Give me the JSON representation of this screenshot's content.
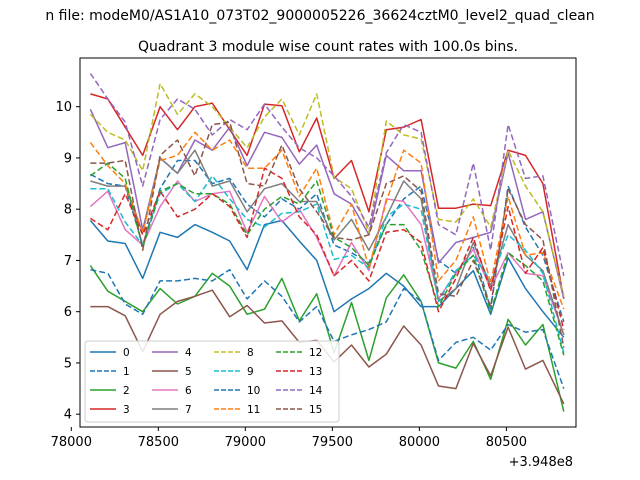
{
  "figure": {
    "suptitle": "n file: modeM0/AS1A10_073T02_9000005226_36624cztM0_level2_quad_clean",
    "title": "Quadrant 3 module wise count rates with 100.0s bins.",
    "offset_label": "+3.948e8"
  },
  "chart_data": {
    "type": "line",
    "title": "Quadrant 3 module wise count rates with 100.0s bins.",
    "xlabel": "",
    "ylabel": "",
    "x_offset": 394800000,
    "xlim": [
      78050,
      80900
    ],
    "ylim": [
      3.75,
      10.95
    ],
    "x_ticks": [
      78000,
      78500,
      79000,
      79500,
      80000,
      80500
    ],
    "x_tick_labels": [
      "78000",
      "78500",
      "79000",
      "79500",
      "80000",
      "80500"
    ],
    "y_ticks": [
      4,
      5,
      6,
      7,
      8,
      9,
      10
    ],
    "y_tick_labels": [
      "4",
      "5",
      "6",
      "7",
      "8",
      "9",
      "10"
    ],
    "grid": false,
    "legend_position": "lower left",
    "legend_columns": 4,
    "x": [
      78110,
      78210,
      78310,
      78410,
      78510,
      78610,
      78710,
      78810,
      78910,
      79010,
      79110,
      79210,
      79310,
      79410,
      79510,
      79610,
      79710,
      79810,
      79910,
      80010,
      80110,
      80210,
      80310,
      80410,
      80510,
      80610,
      80710,
      80830
    ],
    "series": [
      {
        "name": "0",
        "color": "#1f77b4",
        "dash": "solid",
        "values": [
          7.78,
          7.38,
          7.33,
          6.65,
          7.55,
          7.45,
          7.7,
          7.55,
          7.38,
          6.82,
          7.7,
          7.78,
          7.38,
          7.0,
          6.0,
          6.25,
          6.45,
          6.75,
          6.5,
          6.1,
          6.1,
          6.45,
          6.8,
          5.95,
          7.05,
          6.45,
          6.0,
          5.5
        ]
      },
      {
        "name": "1",
        "color": "#1f77b4",
        "dash": "dashed",
        "values": [
          8.68,
          8.5,
          8.45,
          7.3,
          8.4,
          8.95,
          8.95,
          8.5,
          8.6,
          8.1,
          7.85,
          8.2,
          8.0,
          8.3,
          7.3,
          7.15,
          6.95,
          7.7,
          8.2,
          8.45,
          7.0,
          6.75,
          7.25,
          6.05,
          8.45,
          7.65,
          7.1,
          5.8
        ]
      },
      {
        "name": "2",
        "color": "#2ca02c",
        "dash": "solid",
        "values": [
          6.9,
          6.4,
          6.2,
          6.0,
          6.45,
          6.15,
          6.3,
          6.75,
          6.5,
          5.95,
          6.05,
          6.65,
          5.82,
          6.35,
          5.2,
          6.18,
          5.05,
          6.27,
          6.72,
          6.2,
          5.0,
          4.9,
          5.42,
          4.68,
          5.85,
          5.35,
          5.75,
          4.05
        ]
      },
      {
        "name": "3",
        "color": "#d62728",
        "dash": "solid",
        "values": [
          10.25,
          10.15,
          9.6,
          9.05,
          10.0,
          9.55,
          10.0,
          10.07,
          9.55,
          9.05,
          10.05,
          10.02,
          9.12,
          9.78,
          8.6,
          8.95,
          7.95,
          9.55,
          9.6,
          9.75,
          8.02,
          8.02,
          8.1,
          8.07,
          9.15,
          9.05,
          8.5,
          6.25
        ]
      },
      {
        "name": "4",
        "color": "#9467bd",
        "dash": "solid",
        "values": [
          9.95,
          9.2,
          9.3,
          7.6,
          9.0,
          8.7,
          9.35,
          9.15,
          9.6,
          8.85,
          9.5,
          9.4,
          8.88,
          9.25,
          8.3,
          8.1,
          7.5,
          9.05,
          8.75,
          8.75,
          6.95,
          7.35,
          7.45,
          7.55,
          9.1,
          7.8,
          7.95,
          6.25
        ]
      },
      {
        "name": "5",
        "color": "#8c564b",
        "dash": "solid",
        "values": [
          6.1,
          6.1,
          5.92,
          5.22,
          5.95,
          6.2,
          6.3,
          6.42,
          5.9,
          6.12,
          5.78,
          5.82,
          5.4,
          5.44,
          5.02,
          5.35,
          4.92,
          5.17,
          5.72,
          5.35,
          4.55,
          4.5,
          5.38,
          4.75,
          5.7,
          4.88,
          5.05,
          4.2
        ]
      },
      {
        "name": "6",
        "color": "#e377c2",
        "dash": "solid",
        "values": [
          8.05,
          8.35,
          7.6,
          7.3,
          8.05,
          8.55,
          8.15,
          8.3,
          8.35,
          7.55,
          8.25,
          7.75,
          8.0,
          7.45,
          6.7,
          7.35,
          6.8,
          8.2,
          8.15,
          7.7,
          6.25,
          6.75,
          7.22,
          6.45,
          7.15,
          6.75,
          6.7,
          5.55
        ]
      },
      {
        "name": "7",
        "color": "#7f7f7f",
        "dash": "solid",
        "values": [
          8.55,
          8.45,
          8.45,
          7.55,
          9.0,
          8.7,
          9.15,
          8.45,
          8.55,
          7.95,
          8.4,
          8.5,
          8.15,
          8.15,
          7.4,
          7.8,
          7.2,
          7.85,
          8.55,
          8.2,
          6.2,
          6.45,
          7.35,
          6.5,
          7.7,
          7.1,
          6.8,
          5.55
        ]
      },
      {
        "name": "8",
        "color": "#bcbd22",
        "dash": "dashed",
        "values": [
          9.85,
          9.5,
          9.35,
          8.75,
          10.45,
          9.85,
          10.25,
          10.0,
          9.6,
          9.2,
          9.8,
          10.15,
          9.45,
          10.25,
          8.62,
          8.4,
          7.55,
          9.72,
          9.45,
          9.37,
          7.8,
          7.75,
          8.2,
          7.65,
          9.15,
          8.45,
          7.95,
          6.3
        ]
      },
      {
        "name": "9",
        "color": "#17becf",
        "dash": "dashed",
        "values": [
          8.4,
          8.4,
          7.75,
          7.3,
          8.3,
          8.5,
          8.15,
          8.65,
          8.2,
          7.8,
          7.65,
          7.92,
          7.95,
          8.1,
          7.02,
          7.1,
          6.85,
          7.85,
          8.1,
          8.0,
          6.2,
          6.8,
          7.1,
          6.6,
          7.5,
          7.2,
          6.75,
          5.2
        ]
      },
      {
        "name": "10",
        "color": "#1f77b4",
        "dash": "dashed",
        "values": [
          6.82,
          6.75,
          6.15,
          5.95,
          6.6,
          6.6,
          6.65,
          6.6,
          6.82,
          6.25,
          6.6,
          6.3,
          5.8,
          6.1,
          5.42,
          5.55,
          5.65,
          5.8,
          6.45,
          6.2,
          5.05,
          5.4,
          5.5,
          5.25,
          5.75,
          5.6,
          5.65,
          4.5
        ]
      },
      {
        "name": "11",
        "color": "#ff7f0e",
        "dash": "dashed",
        "values": [
          9.3,
          8.85,
          8.5,
          7.55,
          8.95,
          9.05,
          9.5,
          9.15,
          9.35,
          8.8,
          8.8,
          9.15,
          8.25,
          8.8,
          7.5,
          8.1,
          6.85,
          8.15,
          9.15,
          8.9,
          6.6,
          7.0,
          7.85,
          6.55,
          8.25,
          7.1,
          7.15,
          6.05
        ]
      },
      {
        "name": "12",
        "color": "#2ca02c",
        "dash": "dashed",
        "values": [
          8.65,
          8.9,
          8.6,
          7.25,
          8.35,
          8.5,
          8.3,
          8.3,
          8.1,
          7.5,
          8.0,
          8.25,
          8.1,
          8.55,
          7.45,
          7.25,
          6.9,
          7.7,
          7.7,
          7.2,
          6.1,
          6.75,
          7.1,
          6.0,
          7.15,
          6.9,
          6.6,
          5.15
        ]
      },
      {
        "name": "13",
        "color": "#d62728",
        "dash": "dashed",
        "values": [
          7.82,
          7.6,
          8.3,
          7.5,
          8.35,
          7.85,
          8.0,
          8.3,
          8.05,
          7.45,
          8.8,
          8.6,
          7.85,
          7.5,
          6.7,
          7.0,
          6.6,
          7.55,
          7.6,
          7.35,
          6.0,
          6.65,
          7.45,
          6.4,
          8.05,
          6.75,
          7.25,
          5.65
        ]
      },
      {
        "name": "14",
        "color": "#9467bd",
        "dash": "dashed",
        "values": [
          10.65,
          10.15,
          9.7,
          8.45,
          9.75,
          10.15,
          9.95,
          9.45,
          9.75,
          9.55,
          10.05,
          9.6,
          9.2,
          9.0,
          8.65,
          8.25,
          7.65,
          9.1,
          9.65,
          9.5,
          7.7,
          7.5,
          8.9,
          7.2,
          9.65,
          8.6,
          8.65,
          6.7
        ]
      },
      {
        "name": "15",
        "color": "#8c564b",
        "dash": "dashed",
        "values": [
          8.9,
          8.9,
          8.95,
          7.2,
          9.05,
          9.35,
          8.65,
          9.65,
          9.7,
          8.5,
          8.45,
          9.25,
          8.4,
          7.95,
          7.45,
          7.4,
          7.5,
          8.5,
          8.65,
          8.35,
          6.35,
          6.3,
          7.0,
          6.1,
          8.4,
          7.7,
          7.4,
          5.3
        ]
      }
    ]
  }
}
